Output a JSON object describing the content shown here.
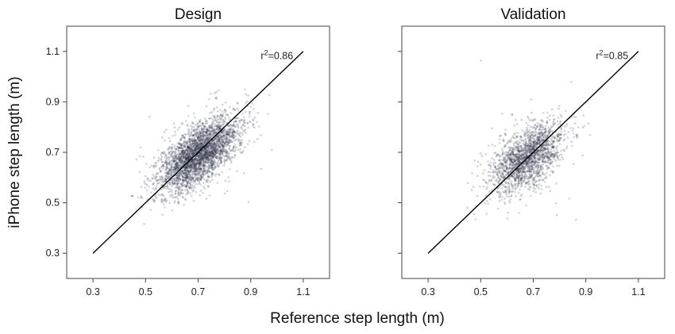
{
  "chart_data": [
    {
      "type": "scatter",
      "title": "Design",
      "xlim": [
        0.2,
        1.2
      ],
      "ylim": [
        0.2,
        1.2
      ],
      "xticks": [
        "0.3",
        "0.5",
        "0.7",
        "0.9",
        "1.1"
      ],
      "yticks": [
        "0.3",
        "0.5",
        "0.7",
        "0.9",
        "1.1"
      ],
      "identity_line": [
        [
          0.3,
          0.3
        ],
        [
          1.1,
          1.1
        ]
      ],
      "annotation": {
        "label": "r",
        "exponent": "2",
        "value": "=0.86",
        "x": 1.0,
        "y": 1.07
      },
      "point_cloud": {
        "center": [
          0.7,
          0.69
        ],
        "major_axis_slope": 1.0,
        "spread_along": 0.095,
        "spread_across": 0.045,
        "count": 3200
      },
      "color": "#2f3248"
    },
    {
      "type": "scatter",
      "title": "Validation",
      "xlim": [
        0.2,
        1.2
      ],
      "ylim": [
        0.2,
        1.2
      ],
      "xticks": [
        "0.3",
        "0.5",
        "0.7",
        "0.9",
        "1.1"
      ],
      "yticks": [],
      "identity_line": [
        [
          0.3,
          0.3
        ],
        [
          1.1,
          1.1
        ]
      ],
      "annotation": {
        "label": "r",
        "exponent": "2",
        "value": "=0.85",
        "x": 1.0,
        "y": 1.07
      },
      "point_cloud": {
        "center": [
          0.68,
          0.68
        ],
        "major_axis_slope": 1.0,
        "spread_along": 0.085,
        "spread_across": 0.045,
        "count": 1900
      },
      "color": "#2f3248"
    }
  ],
  "labels": {
    "ylabel": "iPhone step length (m)",
    "xlabel": "Reference step length (m)"
  }
}
